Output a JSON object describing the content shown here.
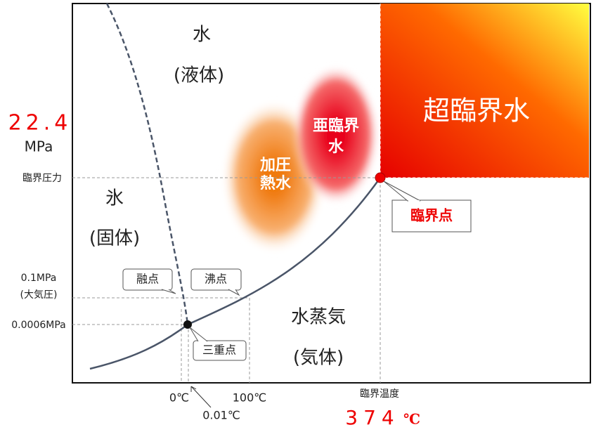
{
  "regions": {
    "liquid": {
      "name": "水",
      "state": "(液体)"
    },
    "solid": {
      "name": "氷",
      "state": "(固体)"
    },
    "gas": {
      "name": "水蒸気",
      "state": "(気体)"
    },
    "supercritical": "超臨界水",
    "subcritical": [
      "亜臨界",
      "水"
    ],
    "pressurized": [
      "加圧",
      "熱水"
    ]
  },
  "callouts": {
    "critical_point": "臨界点",
    "melting_point": "融点",
    "boiling_point": "沸点",
    "triple_point": "三重点"
  },
  "y_labels": {
    "critical_pressure_value": "22.4",
    "critical_pressure_unit": "MPa",
    "critical_pressure": "臨界圧力",
    "atm_value": "0.1MPa",
    "atm": "(大気圧)",
    "triple_pressure": "0.0006MPa"
  },
  "x_labels": {
    "zero": "0℃",
    "hundred": "100℃",
    "triple_temp": "0.01℃",
    "critical_temp": "臨界温度",
    "critical_temp_value": "374",
    "critical_temp_unit": "℃"
  }
}
